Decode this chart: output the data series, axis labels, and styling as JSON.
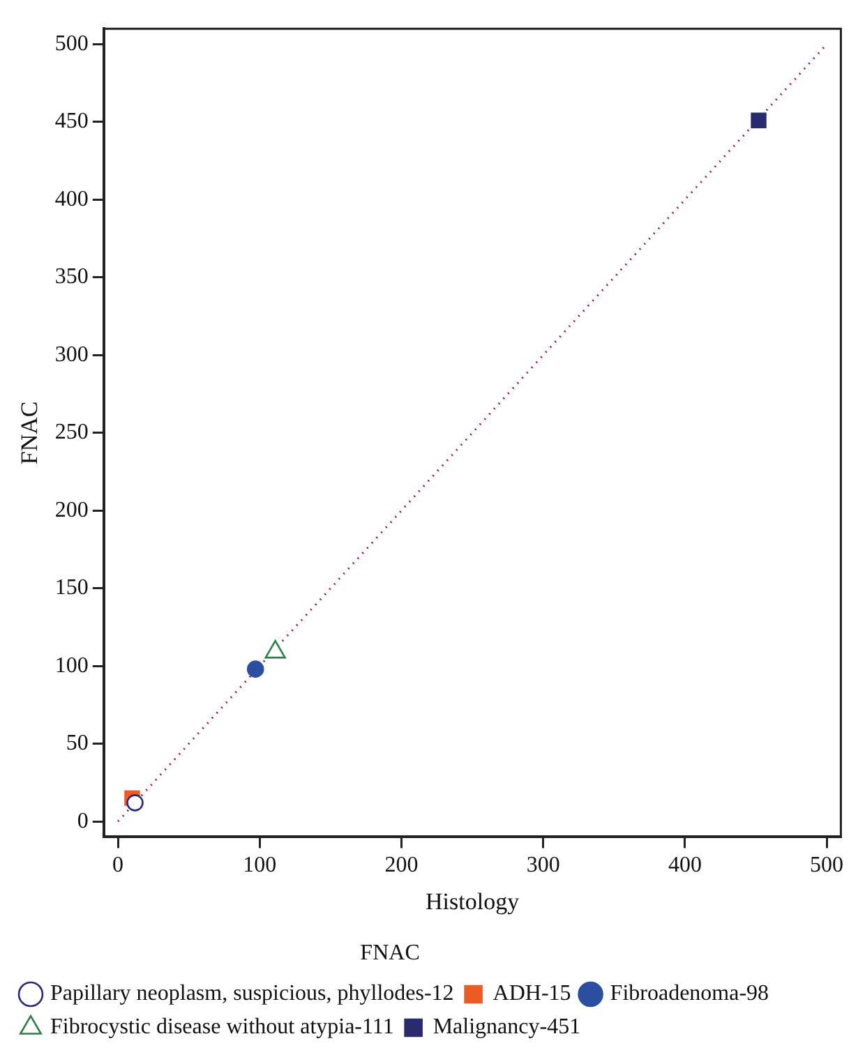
{
  "chart_data": {
    "type": "scatter",
    "xlabel": "Histology",
    "ylabel": "FNAC",
    "legend_title": "FNAC",
    "xlim": [
      -10,
      510
    ],
    "ylim": [
      -10,
      510
    ],
    "xticks": [
      0,
      100,
      200,
      300,
      400,
      500
    ],
    "yticks": [
      0,
      50,
      100,
      150,
      200,
      250,
      300,
      350,
      400,
      450,
      500
    ],
    "grid": false,
    "legend": "bottom",
    "series": [
      {
        "name": "Papillary neoplasm, suspicious, phyllodes-12",
        "color": "#2b2b7e",
        "marker": "circle-open",
        "x": [
          12
        ],
        "values": [
          12
        ]
      },
      {
        "name": "ADH-15",
        "color": "#ee5a24",
        "marker": "square",
        "x": [
          10
        ],
        "values": [
          15
        ]
      },
      {
        "name": "Fibroadenoma-98",
        "color": "#2b4ea0",
        "marker": "circle",
        "x": [
          97
        ],
        "values": [
          98
        ]
      },
      {
        "name": "Fibrocystic disease without atypia-111",
        "color": "#2e7d4a",
        "marker": "triangle-open",
        "x": [
          111
        ],
        "values": [
          109
        ]
      },
      {
        "name": "Malignancy-451",
        "color": "#2a2a6e",
        "marker": "square",
        "x": [
          452
        ],
        "values": [
          451
        ]
      },
      {
        "type": "line",
        "color": "#9b2040",
        "line_style": "dotted",
        "marker": "none",
        "x": [
          0,
          500
        ],
        "values": [
          0,
          500
        ]
      }
    ]
  }
}
